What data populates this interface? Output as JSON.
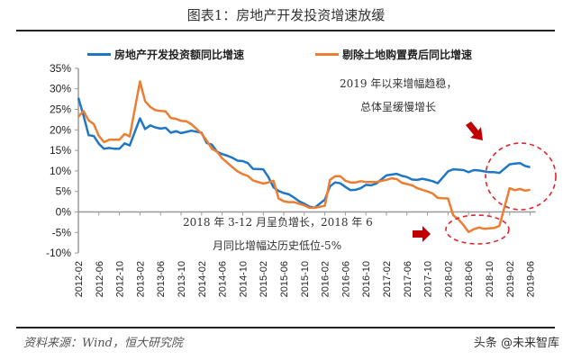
{
  "header": {
    "title": "图表1：房地产开发投资增速放缓"
  },
  "legend": [
    {
      "label": "房地产开发投资额同比增速",
      "color": "#1f77c4"
    },
    {
      "label": "剔除土地购置费后同比增速",
      "color": "#ed7d31"
    }
  ],
  "annotations": {
    "top_line1": "2019 年以来增幅趋稳，",
    "top_line2": "总体呈缓慢增长",
    "bottom_line1": "2018 年 3-12 月呈负增长，2018 年 6",
    "bottom_line2": "月同比增幅达历史低位-5%"
  },
  "footer": {
    "source": "资料来源：Wind，恒大研究院",
    "watermark": "头条 @未来智库"
  },
  "colors": {
    "blue": "#1f77c4",
    "orange": "#ed7d31",
    "highlight": "#d9282f",
    "axis": "#999999"
  },
  "chart_data": {
    "type": "line",
    "title": "图表1：房地产开发投资增速放缓",
    "xlabel": "",
    "ylabel": "",
    "ylim": [
      -10,
      35
    ],
    "yticks": [
      "35%",
      "30%",
      "25%",
      "20%",
      "15%",
      "10%",
      "5%",
      "0%",
      "-5%",
      "-10%"
    ],
    "xtick_labels": [
      "2012-02",
      "2012-06",
      "2012-10",
      "2013-02",
      "2013-06",
      "2013-10",
      "2014-02",
      "2014-06",
      "2014-10",
      "2015-02",
      "2015-06",
      "2015-10",
      "2016-02",
      "2016-06",
      "2016-10",
      "2017-02",
      "2017-06",
      "2017-10",
      "2018-02",
      "2018-06",
      "2018-10",
      "2019-02",
      "2019-06"
    ],
    "legend_position": "top",
    "grid": false,
    "x": [
      "2012-02",
      "2012-03",
      "2012-04",
      "2012-05",
      "2012-06",
      "2012-07",
      "2012-08",
      "2012-09",
      "2012-10",
      "2012-11",
      "2012-12",
      "2013-02",
      "2013-03",
      "2013-04",
      "2013-05",
      "2013-06",
      "2013-07",
      "2013-08",
      "2013-09",
      "2013-10",
      "2013-11",
      "2013-12",
      "2014-02",
      "2014-03",
      "2014-04",
      "2014-05",
      "2014-06",
      "2014-07",
      "2014-08",
      "2014-09",
      "2014-10",
      "2014-11",
      "2014-12",
      "2015-02",
      "2015-03",
      "2015-04",
      "2015-05",
      "2015-06",
      "2015-07",
      "2015-08",
      "2015-09",
      "2015-10",
      "2015-11",
      "2015-12",
      "2016-02",
      "2016-03",
      "2016-04",
      "2016-05",
      "2016-06",
      "2016-07",
      "2016-08",
      "2016-09",
      "2016-10",
      "2016-11",
      "2016-12",
      "2017-02",
      "2017-03",
      "2017-04",
      "2017-05",
      "2017-06",
      "2017-07",
      "2017-08",
      "2017-09",
      "2017-10",
      "2017-11",
      "2017-12",
      "2018-02",
      "2018-03",
      "2018-04",
      "2018-05",
      "2018-06",
      "2018-07",
      "2018-08",
      "2018-09",
      "2018-10",
      "2018-11",
      "2018-12",
      "2019-02",
      "2019-03",
      "2019-04",
      "2019-05",
      "2019-06"
    ],
    "series": [
      {
        "name": "房地产开发投资额同比增速",
        "color": "#1f77c4",
        "values": [
          27.8,
          23.5,
          18.7,
          18.5,
          16.6,
          15.4,
          15.6,
          15.4,
          15.4,
          16.7,
          16.2,
          22.8,
          20.2,
          21.1,
          20.6,
          20.3,
          20.5,
          19.3,
          19.7,
          19.2,
          19.5,
          19.8,
          19.3,
          16.8,
          16.4,
          14.7,
          14.1,
          13.7,
          13.2,
          12.5,
          12.4,
          11.9,
          10.5,
          10.4,
          8.5,
          6.0,
          5.1,
          4.6,
          4.3,
          3.5,
          2.6,
          2.0,
          1.3,
          1.0,
          3.0,
          6.2,
          7.2,
          7.0,
          6.1,
          5.3,
          5.4,
          5.8,
          6.6,
          6.5,
          6.9,
          8.9,
          9.1,
          9.3,
          8.8,
          8.5,
          7.9,
          7.8,
          8.1,
          7.8,
          7.5,
          7.0,
          9.9,
          10.4,
          10.3,
          10.2,
          9.7,
          10.2,
          10.1,
          9.9,
          9.7,
          9.7,
          9.5,
          11.6,
          11.8,
          11.9,
          11.2,
          10.9
        ]
      },
      {
        "name": "剔除土地购置费后同比增速",
        "color": "#ed7d31",
        "values": [
          23.2,
          24.6,
          22.3,
          21.4,
          18.5,
          17.0,
          17.6,
          17.6,
          17.6,
          19.0,
          18.4,
          31.8,
          27.0,
          25.6,
          24.8,
          24.6,
          24.5,
          22.9,
          22.7,
          22.2,
          22.1,
          21.4,
          19.1,
          17.4,
          15.4,
          14.7,
          13.1,
          12.0,
          10.9,
          9.9,
          9.2,
          8.8,
          7.7,
          6.9,
          7.2,
          7.6,
          3.3,
          2.6,
          2.4,
          2.4,
          2.0,
          1.6,
          1.0,
          1.0,
          1.5,
          7.8,
          8.7,
          8.7,
          7.6,
          7.2,
          7.2,
          7.5,
          7.3,
          7.3,
          7.3,
          7.8,
          8.2,
          8.0,
          7.1,
          6.8,
          6.5,
          5.8,
          5.4,
          5.0,
          4.5,
          3.4,
          3.3,
          -0.8,
          -1.8,
          -3.2,
          -4.9,
          -4.2,
          -3.8,
          -4.1,
          -4.0,
          -3.9,
          -3.4,
          5.8,
          5.3,
          5.6,
          5.2,
          5.4
        ]
      }
    ]
  }
}
